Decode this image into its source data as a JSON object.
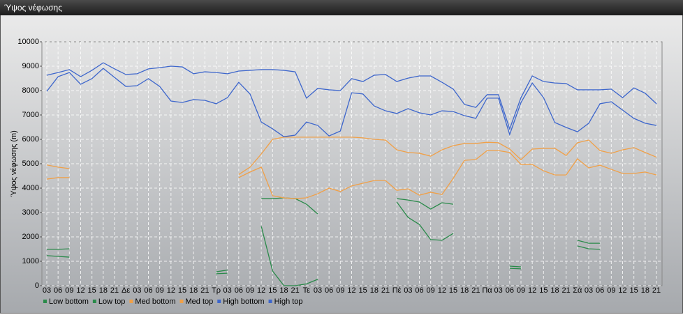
{
  "chart_data": {
    "type": "line",
    "title": "Ύψος νέφωσης",
    "ylabel": "Ύψος νέφωσης (m)",
    "categories": [
      "03",
      "06",
      "09",
      "12",
      "15",
      "18",
      "21",
      "Δε",
      "03",
      "06",
      "09",
      "12",
      "15",
      "18",
      "21",
      "Τρ",
      "03",
      "06",
      "09",
      "12",
      "15",
      "18",
      "21",
      "Τε",
      "03",
      "06",
      "09",
      "12",
      "15",
      "18",
      "21",
      "Πέ",
      "03",
      "06",
      "09",
      "12",
      "15",
      "18",
      "21",
      "Πα",
      "03",
      "06",
      "09",
      "12",
      "15",
      "18",
      "21",
      "Σά",
      "03",
      "06",
      "09",
      "12",
      "15",
      "18",
      "21"
    ],
    "ylim": [
      0,
      10000
    ],
    "yticks": [
      0,
      1000,
      2000,
      3000,
      4000,
      5000,
      6000,
      7000,
      8000,
      9000,
      10000
    ],
    "grid": true,
    "legend": "bottom-left",
    "series": [
      {
        "name": "Low bottom",
        "color": "#2a8a4a",
        "values": [
          1230,
          1200,
          1170,
          null,
          null,
          null,
          null,
          null,
          null,
          null,
          null,
          null,
          null,
          null,
          null,
          490,
          510,
          null,
          null,
          2430,
          600,
          0,
          0,
          71,
          260,
          null,
          null,
          null,
          null,
          null,
          null,
          3430,
          2800,
          2510,
          1890,
          1860,
          2140,
          null,
          null,
          null,
          null,
          710,
          690,
          null,
          null,
          null,
          null,
          1630,
          1510,
          1490,
          null,
          null,
          null,
          null,
          null
        ]
      },
      {
        "name": "Low top",
        "color": "#2a8a4a",
        "values": [
          1490,
          1490,
          1510,
          null,
          null,
          null,
          null,
          null,
          null,
          null,
          null,
          null,
          null,
          null,
          null,
          570,
          640,
          null,
          null,
          3570,
          3570,
          3600,
          3570,
          3340,
          2940,
          null,
          null,
          null,
          null,
          null,
          null,
          3570,
          3510,
          3430,
          3140,
          3400,
          3340,
          null,
          null,
          null,
          null,
          800,
          770,
          null,
          null,
          null,
          null,
          1860,
          1740,
          1740,
          null,
          null,
          null,
          null,
          null
        ]
      },
      {
        "name": "Med bottom",
        "color": "#f0a048",
        "values": [
          4370,
          4430,
          4430,
          null,
          null,
          null,
          null,
          null,
          null,
          null,
          null,
          null,
          null,
          null,
          null,
          null,
          null,
          4430,
          4660,
          4860,
          3690,
          3600,
          3570,
          3600,
          3770,
          4000,
          3860,
          4090,
          4200,
          4310,
          4310,
          3910,
          3970,
          3710,
          3830,
          3740,
          4400,
          5140,
          5170,
          5540,
          5540,
          5460,
          4970,
          4970,
          4710,
          4540,
          4540,
          5200,
          4830,
          4940,
          4770,
          4600,
          4600,
          4660,
          4540
        ]
      },
      {
        "name": "Med top",
        "color": "#f0a048",
        "values": [
          4950,
          4860,
          4800,
          null,
          null,
          null,
          null,
          null,
          null,
          null,
          null,
          null,
          null,
          null,
          null,
          null,
          null,
          4560,
          4860,
          5400,
          6000,
          6090,
          6090,
          6090,
          6090,
          6090,
          6090,
          6090,
          6060,
          6000,
          5970,
          5570,
          5460,
          5430,
          5310,
          5570,
          5740,
          5830,
          5830,
          5880,
          5860,
          5600,
          5170,
          5600,
          5630,
          5630,
          5340,
          5860,
          5970,
          5540,
          5430,
          5570,
          5660,
          5460,
          5270
        ]
      },
      {
        "name": "High bottom",
        "color": "#3d66cc",
        "values": [
          7970,
          8570,
          8740,
          8260,
          8490,
          8910,
          8540,
          8170,
          8200,
          8490,
          8170,
          7570,
          7510,
          7630,
          7600,
          7460,
          7710,
          8340,
          7860,
          6710,
          6430,
          6110,
          6170,
          6710,
          6570,
          6140,
          6340,
          7910,
          7860,
          7370,
          7170,
          7060,
          7260,
          7090,
          7000,
          7170,
          7140,
          6970,
          6860,
          7690,
          7690,
          6200,
          7510,
          8310,
          7710,
          6690,
          6490,
          6310,
          6660,
          7460,
          7540,
          7200,
          6860,
          6660,
          6570
        ]
      },
      {
        "name": "High top",
        "color": "#3d66cc",
        "values": [
          8630,
          8740,
          8860,
          8570,
          8830,
          9140,
          8890,
          8660,
          8690,
          8890,
          8940,
          9000,
          8970,
          8690,
          8770,
          8740,
          8690,
          8800,
          8830,
          8860,
          8860,
          8830,
          8770,
          7690,
          8090,
          8030,
          8000,
          8490,
          8370,
          8630,
          8660,
          8370,
          8510,
          8600,
          8600,
          8340,
          8060,
          7430,
          7310,
          7830,
          7830,
          6430,
          7710,
          8600,
          8370,
          8310,
          8290,
          8030,
          8030,
          8030,
          8060,
          7710,
          8110,
          7890,
          7460
        ]
      }
    ]
  }
}
